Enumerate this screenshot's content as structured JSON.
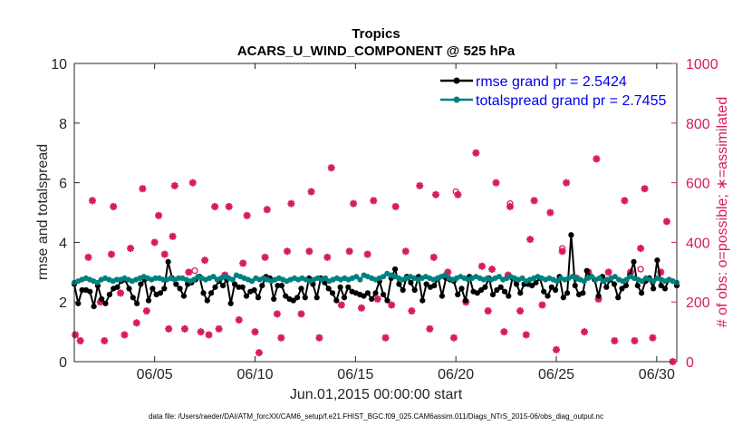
{
  "chart_data": {
    "type": "line",
    "title_line1": "Tropics",
    "title_line2": "ACARS_U_WIND_COMPONENT @ 525 hPa",
    "xlabel": "Jun.01,2015 00:00:00 start",
    "ylabel_left": "rmse and totalspread",
    "ylabel_right": "# of obs: o=possible; ∗=assimilated",
    "x_range_days": [
      1,
      31
    ],
    "ylim_left": [
      0,
      10
    ],
    "ylim_right": [
      0,
      1000
    ],
    "x_ticks": [
      {
        "day": 5,
        "label": "06/05"
      },
      {
        "day": 10,
        "label": "06/10"
      },
      {
        "day": 15,
        "label": "06/15"
      },
      {
        "day": 20,
        "label": "06/20"
      },
      {
        "day": 25,
        "label": "06/25"
      },
      {
        "day": 30,
        "label": "06/30"
      }
    ],
    "y_ticks_left": [
      "0",
      "2",
      "4",
      "6",
      "8",
      "10"
    ],
    "y_ticks_right": [
      "0",
      "200",
      "400",
      "600",
      "800",
      "1000"
    ],
    "legend": [
      {
        "name": "rmse grand pr = 2.5424",
        "color": "#000000"
      },
      {
        "name": "totalspread grand pr = 2.7455",
        "color": "#008080"
      }
    ],
    "series": [
      {
        "name": "rmse",
        "color": "#000000",
        "values": [
          2.6,
          1.95,
          2.4,
          2.4,
          2.35,
          1.85,
          2.55,
          2.1,
          1.95,
          2.25,
          2.45,
          2.5,
          2.7,
          2.75,
          2.45,
          2.15,
          1.95,
          2.6,
          2.75,
          2.05,
          2.45,
          2.25,
          2.3,
          2.45,
          3.35,
          2.8,
          2.6,
          2.45,
          2.2,
          2.6,
          2.65,
          2.75,
          2.85,
          2.3,
          2.05,
          2.3,
          2.5,
          2.7,
          2.55,
          2.75,
          1.95,
          2.6,
          2.5,
          2.5,
          2.2,
          2.35,
          2.4,
          2.15,
          2.55,
          2.85,
          2.8,
          2.1,
          2.55,
          2.55,
          2.2,
          2.1,
          2.05,
          2.15,
          2.45,
          2.15,
          2.8,
          2.6,
          2.15,
          2.8,
          2.65,
          2.45,
          2.3,
          2.05,
          2.5,
          2.15,
          2.5,
          2.35,
          2.3,
          2.25,
          2.2,
          2.3,
          2.1,
          2.3,
          2.7,
          2.25,
          2.05,
          2.8,
          3.1,
          2.6,
          2.4,
          2.85,
          2.65,
          2.4,
          2.85,
          2.05,
          2.6,
          2.5,
          2.55,
          2.8,
          2.2,
          2.8,
          2.75,
          2.7,
          2.25,
          2.45,
          2.05,
          2.85,
          2.35,
          2.3,
          2.4,
          2.5,
          2.8,
          2.25,
          2.4,
          2.5,
          2.35,
          2.2,
          2.8,
          2.6,
          2.3,
          2.6,
          2.6,
          2.55,
          2.65,
          2.8,
          2.35,
          2.2,
          2.5,
          2.4,
          2.85,
          2.15,
          2.3,
          4.25,
          2.55,
          2.25,
          2.3,
          3.05,
          2.85,
          2.75,
          2.2,
          2.85,
          2.5,
          2.75,
          2.6,
          2.15,
          2.45,
          2.55,
          2.9,
          3.35,
          2.55,
          2.3,
          2.7,
          2.8,
          2.45,
          3.4,
          2.55,
          2.45,
          2.75,
          2.7,
          2.55
        ]
      },
      {
        "name": "totalspread",
        "color": "#008080",
        "values": [
          2.65,
          2.7,
          2.75,
          2.8,
          2.75,
          2.7,
          2.65,
          2.75,
          2.8,
          2.75,
          2.7,
          2.75,
          2.75,
          2.8,
          2.75,
          2.7,
          2.75,
          2.8,
          2.85,
          2.8,
          2.75,
          2.8,
          2.8,
          2.75,
          2.75,
          2.8,
          2.75,
          2.8,
          2.8,
          2.75,
          2.7,
          2.75,
          2.85,
          2.8,
          2.75,
          2.8,
          2.85,
          2.75,
          2.8,
          2.85,
          2.8,
          2.75,
          2.9,
          2.85,
          2.8,
          2.75,
          2.7,
          2.8,
          2.75,
          2.8,
          2.75,
          2.7,
          2.75,
          2.8,
          2.75,
          2.7,
          2.75,
          2.8,
          2.75,
          2.8,
          2.75,
          2.7,
          2.75,
          2.8,
          2.75,
          2.8,
          2.7,
          2.75,
          2.8,
          2.75,
          2.8,
          2.75,
          2.8,
          2.85,
          2.75,
          2.9,
          2.85,
          2.8,
          2.75,
          2.8,
          2.85,
          2.95,
          2.9,
          2.85,
          2.8,
          2.75,
          2.8,
          2.85,
          2.8,
          2.75,
          2.8,
          2.85,
          2.8,
          2.75,
          2.8,
          2.85,
          2.9,
          2.8,
          2.75,
          2.8,
          2.85,
          2.8,
          2.75,
          2.8,
          2.85,
          2.8,
          2.75,
          2.8,
          2.75,
          2.8,
          2.85,
          2.75,
          2.8,
          2.85,
          2.8,
          2.75,
          2.8,
          2.7,
          2.75,
          2.8,
          2.85,
          2.8,
          2.75,
          2.8,
          2.75,
          2.7,
          2.8,
          2.75,
          2.8,
          2.85,
          2.8,
          2.75,
          2.7,
          2.8,
          2.85,
          2.75,
          2.8,
          2.7,
          2.75,
          2.8,
          2.85,
          2.75,
          2.7,
          2.75,
          2.85,
          2.8,
          2.75,
          2.7,
          2.8,
          2.75,
          2.7,
          2.8,
          2.75,
          2.7,
          2.75,
          2.7,
          2.65
        ]
      }
    ],
    "obs_counts": {
      "assimilated": [
        [
          1.05,
          90
        ],
        [
          1.3,
          70
        ],
        [
          1.7,
          350
        ],
        [
          1.9,
          540
        ],
        [
          2.3,
          200
        ],
        [
          2.5,
          70
        ],
        [
          2.85,
          360
        ],
        [
          2.95,
          520
        ],
        [
          3.3,
          230
        ],
        [
          3.5,
          90
        ],
        [
          3.8,
          380
        ],
        [
          4.1,
          130
        ],
        [
          4.4,
          580
        ],
        [
          4.6,
          170
        ],
        [
          5.0,
          400
        ],
        [
          5.2,
          490
        ],
        [
          5.5,
          360
        ],
        [
          5.7,
          110
        ],
        [
          5.9,
          420
        ],
        [
          6.0,
          590
        ],
        [
          6.5,
          110
        ],
        [
          6.7,
          300
        ],
        [
          6.9,
          600
        ],
        [
          7.3,
          100
        ],
        [
          7.5,
          340
        ],
        [
          7.7,
          90
        ],
        [
          8.0,
          520
        ],
        [
          8.2,
          110
        ],
        [
          8.5,
          290
        ],
        [
          8.7,
          520
        ],
        [
          9.2,
          140
        ],
        [
          9.4,
          330
        ],
        [
          9.6,
          490
        ],
        [
          10.0,
          100
        ],
        [
          10.2,
          30
        ],
        [
          10.5,
          350
        ],
        [
          10.6,
          510
        ],
        [
          11.1,
          160
        ],
        [
          11.3,
          80
        ],
        [
          11.6,
          370
        ],
        [
          11.8,
          530
        ],
        [
          12.3,
          160
        ],
        [
          12.7,
          370
        ],
        [
          12.8,
          570
        ],
        [
          13.2,
          80
        ],
        [
          13.6,
          350
        ],
        [
          13.8,
          650
        ],
        [
          14.3,
          190
        ],
        [
          14.7,
          370
        ],
        [
          14.9,
          530
        ],
        [
          15.3,
          180
        ],
        [
          15.6,
          360
        ],
        [
          15.9,
          540
        ],
        [
          16.1,
          210
        ],
        [
          16.5,
          80
        ],
        [
          16.8,
          190
        ],
        [
          17.0,
          520
        ],
        [
          17.5,
          370
        ],
        [
          17.8,
          170
        ],
        [
          18.2,
          590
        ],
        [
          18.7,
          110
        ],
        [
          18.9,
          350
        ],
        [
          19.0,
          560
        ],
        [
          19.6,
          300
        ],
        [
          19.9,
          80
        ],
        [
          20.1,
          560
        ],
        [
          20.5,
          200
        ],
        [
          21.0,
          700
        ],
        [
          21.3,
          320
        ],
        [
          21.6,
          170
        ],
        [
          21.8,
          310
        ],
        [
          22.0,
          600
        ],
        [
          22.4,
          100
        ],
        [
          22.6,
          290
        ],
        [
          22.7,
          520
        ],
        [
          23.2,
          170
        ],
        [
          23.5,
          90
        ],
        [
          23.7,
          410
        ],
        [
          23.9,
          540
        ],
        [
          24.3,
          190
        ],
        [
          24.7,
          500
        ],
        [
          25.0,
          40
        ],
        [
          25.3,
          370
        ],
        [
          25.5,
          600
        ],
        [
          26.0,
          280
        ],
        [
          26.4,
          100
        ],
        [
          26.6,
          300
        ],
        [
          27.0,
          680
        ],
        [
          27.1,
          210
        ],
        [
          27.6,
          300
        ],
        [
          27.9,
          70
        ],
        [
          28.4,
          540
        ],
        [
          28.7,
          300
        ],
        [
          28.9,
          70
        ],
        [
          29.2,
          380
        ],
        [
          29.4,
          580
        ],
        [
          29.8,
          80
        ],
        [
          30.2,
          300
        ],
        [
          30.5,
          470
        ],
        [
          30.8,
          0
        ]
      ],
      "possible": [
        [
          20.0,
          570
        ],
        [
          22.7,
          530
        ],
        [
          25.3,
          380
        ],
        [
          29.2,
          310
        ],
        [
          7.0,
          305
        ]
      ]
    }
  },
  "footer": {
    "data_file": "data file: /Users/raeder/DAI/ATM_forcXX/CAM6_setup/f.e21.FHIST_BGC.f09_025.CAM6assim.011/Diags_NTrS_2015-06/obs_diag_output.nc"
  }
}
